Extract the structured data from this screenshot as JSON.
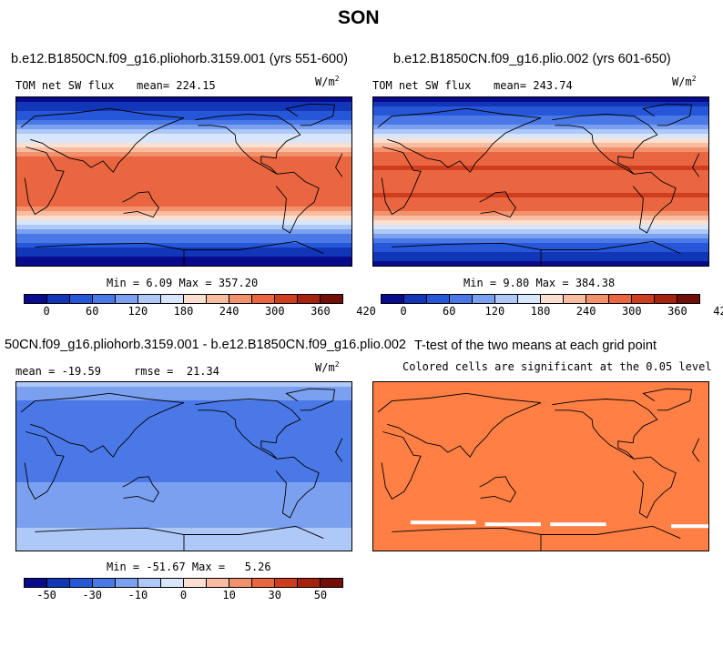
{
  "figure_title": "SON",
  "palette": [
    "#0a0a8c",
    "#1236b8",
    "#2757d9",
    "#4a78e6",
    "#7ba0f0",
    "#aec8f7",
    "#d8e6fb",
    "#fbe0d2",
    "#f8bca0",
    "#f3916c",
    "#ea6641",
    "#cf3d1f",
    "#a5220f",
    "#701008"
  ],
  "significance_color": "#ff7f45",
  "panels": [
    {
      "title": "b.e12.B1850CN.f09_g16.pliohorb.3159.001 (yrs 551-600)",
      "left_label": "TOM net SW flux",
      "stat_label": "mean= 224.15",
      "units": "W/m",
      "units_sup": "2",
      "minmax": "Min =   6.09 Max = 357.20"
    },
    {
      "title": "b.e12.B1850CN.f09_g16.plio.002 (yrs 601-650)",
      "left_label": "TOM net SW flux",
      "stat_label": "mean= 243.74",
      "units": "W/m",
      "units_sup": "2",
      "minmax": "Min =   9.80 Max = 384.38"
    },
    {
      "title": "50CN.f09_g16.pliohorb.3159.001 - b.e12.B1850CN.f09_g16.plio.002",
      "left_label": "mean = -19.59     rmse =  21.34",
      "units": "W/m",
      "units_sup": "2",
      "minmax": "Min = -51.67 Max =   5.26"
    },
    {
      "title": "T-test of the two means at each grid point",
      "subtitle": "Colored cells are significant at the 0.05 level"
    }
  ],
  "colorbar_abs_ticks": [
    "0",
    "60",
    "120",
    "180",
    "240",
    "300",
    "360",
    "420"
  ],
  "colorbar_diff_ticks": [
    "-50",
    "-30",
    "-10",
    "0",
    "10",
    "30",
    "50"
  ],
  "chart_data": [
    {
      "type": "heatmap",
      "title": "b.e12.B1850CN.f09_g16.pliohorb.3159.001 (yrs 551-600)",
      "variable": "TOM net SW flux",
      "units": "W/m2",
      "mean": 224.15,
      "min": 6.09,
      "max": 357.2,
      "levels": [
        0,
        30,
        60,
        90,
        120,
        150,
        180,
        210,
        240,
        270,
        300,
        330,
        360,
        390,
        420
      ],
      "zonal_profile": {
        "lat": [
          90,
          75,
          60,
          45,
          30,
          15,
          0,
          -15,
          -30,
          -45,
          -60,
          -75,
          -90
        ],
        "value": [
          15,
          60,
          120,
          200,
          290,
          320,
          300,
          320,
          290,
          200,
          110,
          50,
          10
        ]
      }
    },
    {
      "type": "heatmap",
      "title": "b.e12.B1850CN.f09_g16.plio.002 (yrs 601-650)",
      "variable": "TOM net SW flux",
      "units": "W/m2",
      "mean": 243.74,
      "min": 9.8,
      "max": 384.38,
      "levels": [
        0,
        30,
        60,
        90,
        120,
        150,
        180,
        210,
        240,
        270,
        300,
        330,
        360,
        390,
        420
      ],
      "zonal_profile": {
        "lat": [
          90,
          75,
          60,
          45,
          30,
          15,
          0,
          -15,
          -30,
          -45,
          -60,
          -75,
          -90
        ],
        "value": [
          20,
          70,
          130,
          215,
          300,
          335,
          320,
          335,
          305,
          215,
          120,
          55,
          12
        ]
      }
    },
    {
      "type": "heatmap",
      "title": "50CN.f09_g16.pliohorb.3159.001 - b.e12.B1850CN.f09_g16.plio.002",
      "units": "W/m2",
      "mean": -19.59,
      "rmse": 21.34,
      "min": -51.67,
      "max": 5.26,
      "levels": [
        -60,
        -50,
        -40,
        -30,
        -20,
        -10,
        0,
        5,
        10,
        20,
        30,
        40,
        50,
        60
      ],
      "zonal_profile": {
        "lat": [
          90,
          75,
          60,
          45,
          30,
          15,
          0,
          -15,
          -30,
          -45,
          -60,
          -75,
          -90
        ],
        "value": [
          -3,
          -18,
          -30,
          -28,
          -22,
          -25,
          -22,
          -20,
          -18,
          -15,
          -12,
          -5,
          -2
        ]
      }
    },
    {
      "type": "heatmap",
      "title": "T-test of the two means at each grid point",
      "note": "Colored cells are significant at the 0.05 level",
      "significant_fraction": 0.97
    }
  ]
}
